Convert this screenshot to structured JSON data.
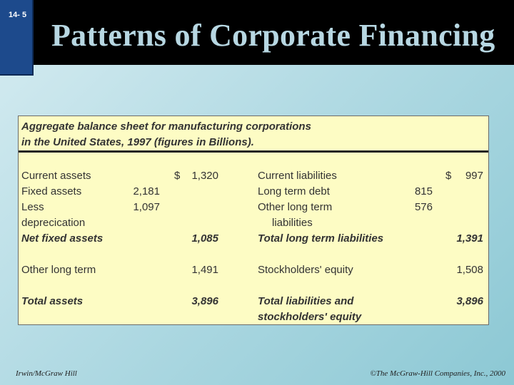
{
  "slide_number": "14- 5",
  "title": "Patterns of Corporate Financing",
  "heading_line1": "Aggregate balance sheet for manufacturing corporations",
  "heading_line2": "in the United States,  1997 (figures in Billions).",
  "assets": {
    "current_assets_label": "Current assets",
    "current_assets_dollar": "$",
    "current_assets_value": "1,320",
    "fixed_assets_label": "Fixed assets",
    "fixed_assets_value": "2,181",
    "less_label": "Less",
    "less_value": "1,097",
    "depreciation_label": "deprecication",
    "net_fixed_label": "Net fixed assets",
    "net_fixed_value": "1,085",
    "other_long_term_label": "Other long term",
    "other_long_term_value": "1,491",
    "total_assets_label": "Total assets",
    "total_assets_value": "3,896"
  },
  "liabilities": {
    "current_liabilities_label": "Current liabilities",
    "current_liabilities_dollar": "$",
    "current_liabilities_value": "997",
    "long_term_debt_label": "Long term debt",
    "long_term_debt_value": "815",
    "other_long_term_label": "Other long term",
    "other_long_term_value": "576",
    "liabilities_label": "liabilities",
    "total_lt_label": "Total long term liabilities",
    "total_lt_value": "1,391",
    "equity_label": "Stockholders' equity",
    "equity_value": "1,508",
    "total_label_1": "Total liabilities and",
    "total_label_2": "stockholders' equity",
    "total_value": "3,896"
  },
  "footer_left": "Irwin/McGraw Hill",
  "footer_right": "©The McGraw-Hill Companies, Inc., 2000"
}
